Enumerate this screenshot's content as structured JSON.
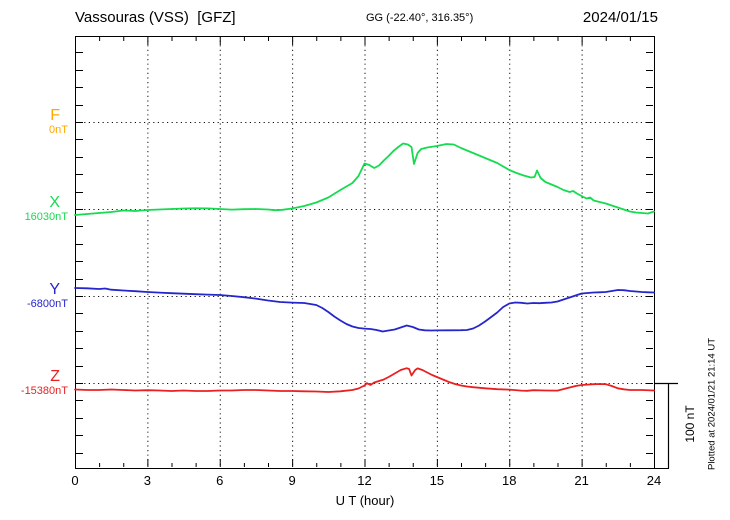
{
  "header": {
    "station_title": "Vassouras (VSS)  [GFZ]",
    "coordinates": "GG (-22.40°, 316.35°)",
    "date": "2024/01/15"
  },
  "axis": {
    "xlabel": "U T (hour)",
    "x_tick_labels": [
      "0",
      "3",
      "6",
      "9",
      "12",
      "15",
      "18",
      "21",
      "24"
    ],
    "scale_bar_label": "100 nT",
    "plotted_note": "Plotted at 2024/01/21 21:14 UT"
  },
  "chart_data": {
    "type": "line",
    "title": "Vassouras (VSS) [GFZ]",
    "subtitle": "GG (-22.40°, 316.35°)",
    "date": "2024/01/15",
    "xlabel": "U T (hour)",
    "x_range": [
      0,
      24
    ],
    "x_ticks": [
      0,
      3,
      6,
      9,
      12,
      15,
      18,
      21,
      24
    ],
    "grid": "dotted vertical every 3 h, dotted horizontal at each component baseline",
    "y_scale_bar": "100 nT",
    "note": "points are [hour UT, offset in nT from the component baseline value]",
    "series": [
      {
        "component": "F",
        "base_value_label": "0nT",
        "color": "#FFA800",
        "points_nt_offset": []
      },
      {
        "component": "X",
        "base_value_label": "16030nT",
        "color": "#16DB50",
        "points_nt_offset": [
          [
            0,
            -7.1
          ],
          [
            0.5,
            -5.9
          ],
          [
            1,
            -4.7
          ],
          [
            1.5,
            -3.5
          ],
          [
            2,
            -1.8
          ],
          [
            2.5,
            -2.4
          ],
          [
            3,
            -1.2
          ],
          [
            3.5,
            -0.6
          ],
          [
            4,
            0
          ],
          [
            4.5,
            0.6
          ],
          [
            5,
            0.8
          ],
          [
            5.5,
            0.7
          ],
          [
            6,
            0
          ],
          [
            6.5,
            -0.7
          ],
          [
            7,
            -0.2
          ],
          [
            7.5,
            0
          ],
          [
            8,
            -0.6
          ],
          [
            8.3,
            -1.4
          ],
          [
            8.6,
            -0.9
          ],
          [
            9,
            0.6
          ],
          [
            9.5,
            3.5
          ],
          [
            10,
            7.6
          ],
          [
            10.5,
            13.5
          ],
          [
            11,
            22.4
          ],
          [
            11.5,
            30.6
          ],
          [
            11.75,
            38.8
          ],
          [
            12,
            53.5
          ],
          [
            12.2,
            51.8
          ],
          [
            12.4,
            48.2
          ],
          [
            12.6,
            51.2
          ],
          [
            12.8,
            57.1
          ],
          [
            13,
            62.4
          ],
          [
            13.2,
            68.2
          ],
          [
            13.4,
            72.9
          ],
          [
            13.6,
            77.1
          ],
          [
            13.8,
            75.9
          ],
          [
            13.95,
            72.9
          ],
          [
            14.05,
            52.9
          ],
          [
            14.2,
            65.9
          ],
          [
            14.35,
            70.6
          ],
          [
            14.6,
            72.4
          ],
          [
            15,
            74.1
          ],
          [
            15.4,
            76.5
          ],
          [
            15.7,
            75.9
          ],
          [
            16,
            71.8
          ],
          [
            16.5,
            65.9
          ],
          [
            17,
            60
          ],
          [
            17.5,
            54.1
          ],
          [
            18,
            45.9
          ],
          [
            18.3,
            42.4
          ],
          [
            18.6,
            39.4
          ],
          [
            18.9,
            37.1
          ],
          [
            19.05,
            37.6
          ],
          [
            19.15,
            45.3
          ],
          [
            19.3,
            36.5
          ],
          [
            19.5,
            31.8
          ],
          [
            19.75,
            28.8
          ],
          [
            20,
            25.9
          ],
          [
            20.25,
            22.4
          ],
          [
            20.5,
            20
          ],
          [
            20.65,
            21.2
          ],
          [
            20.8,
            18.2
          ],
          [
            21,
            15.3
          ],
          [
            21.2,
            12.4
          ],
          [
            21.35,
            13.5
          ],
          [
            21.5,
            10
          ],
          [
            21.75,
            8.2
          ],
          [
            22,
            6.5
          ],
          [
            22.25,
            4.1
          ],
          [
            22.5,
            1.8
          ],
          [
            22.75,
            -0.6
          ],
          [
            23,
            -2.9
          ],
          [
            23.25,
            -4.1
          ],
          [
            23.5,
            -4.7
          ],
          [
            23.75,
            -5.3
          ],
          [
            24,
            -2.9
          ]
        ]
      },
      {
        "component": "Y",
        "base_value_label": "-6800nT",
        "color": "#2626CC",
        "points_nt_offset": [
          [
            0,
            9.4
          ],
          [
            0.5,
            9.1
          ],
          [
            1,
            8.2
          ],
          [
            1.25,
            8.8
          ],
          [
            1.5,
            7.4
          ],
          [
            2,
            6.5
          ],
          [
            2.5,
            5.6
          ],
          [
            3,
            4.7
          ],
          [
            3.5,
            4
          ],
          [
            4,
            3.3
          ],
          [
            4.5,
            2.7
          ],
          [
            5,
            2.1
          ],
          [
            5.5,
            1.6
          ],
          [
            6,
            1.2
          ],
          [
            6.5,
            0
          ],
          [
            7,
            -1.4
          ],
          [
            7.5,
            -3.1
          ],
          [
            8,
            -5.3
          ],
          [
            8.5,
            -7.1
          ],
          [
            9,
            -7.8
          ],
          [
            9.5,
            -8.2
          ],
          [
            10,
            -10.6
          ],
          [
            10.25,
            -14.1
          ],
          [
            10.5,
            -18.8
          ],
          [
            10.75,
            -24.1
          ],
          [
            11,
            -28.8
          ],
          [
            11.25,
            -32.9
          ],
          [
            11.5,
            -35.9
          ],
          [
            11.75,
            -37.6
          ],
          [
            12,
            -38.4
          ],
          [
            12.25,
            -38.8
          ],
          [
            12.5,
            -40
          ],
          [
            12.75,
            -41.8
          ],
          [
            13,
            -40.6
          ],
          [
            13.25,
            -39.4
          ],
          [
            13.5,
            -37.1
          ],
          [
            13.75,
            -34.7
          ],
          [
            14,
            -36.5
          ],
          [
            14.25,
            -39.4
          ],
          [
            14.5,
            -40.4
          ],
          [
            14.75,
            -40.6
          ],
          [
            15,
            -40.5
          ],
          [
            15.5,
            -40.4
          ],
          [
            16,
            -40.2
          ],
          [
            16.25,
            -40
          ],
          [
            16.5,
            -38.2
          ],
          [
            16.75,
            -34.7
          ],
          [
            17,
            -30
          ],
          [
            17.25,
            -24.7
          ],
          [
            17.5,
            -19.4
          ],
          [
            17.75,
            -12.9
          ],
          [
            18,
            -8.8
          ],
          [
            18.25,
            -7.6
          ],
          [
            18.5,
            -8
          ],
          [
            18.75,
            -8.8
          ],
          [
            19,
            -8.2
          ],
          [
            19.25,
            -8.5
          ],
          [
            19.5,
            -8
          ],
          [
            19.75,
            -7.6
          ],
          [
            20,
            -6.5
          ],
          [
            20.25,
            -4.1
          ],
          [
            20.5,
            -1.8
          ],
          [
            20.75,
            0.6
          ],
          [
            21,
            2.9
          ],
          [
            21.25,
            3.5
          ],
          [
            21.5,
            4.1
          ],
          [
            21.75,
            4.4
          ],
          [
            22,
            4.7
          ],
          [
            22.25,
            5.9
          ],
          [
            22.5,
            7.1
          ],
          [
            22.75,
            6.8
          ],
          [
            23,
            5.9
          ],
          [
            23.25,
            5.3
          ],
          [
            23.5,
            4.7
          ],
          [
            23.75,
            4.3
          ],
          [
            24,
            4.1
          ]
        ]
      },
      {
        "component": "Z",
        "base_value_label": "-15380nT",
        "color": "#EA2020",
        "points_nt_offset": [
          [
            0,
            -7.6
          ],
          [
            0.5,
            -8.2
          ],
          [
            1,
            -8.2
          ],
          [
            1.5,
            -7.6
          ],
          [
            2,
            -8.2
          ],
          [
            2.5,
            -8.8
          ],
          [
            3,
            -8.5
          ],
          [
            3.5,
            -8.8
          ],
          [
            4,
            -9.4
          ],
          [
            4.5,
            -8.8
          ],
          [
            5,
            -9.4
          ],
          [
            5.5,
            -9.4
          ],
          [
            6,
            -8.8
          ],
          [
            6.5,
            -8.8
          ],
          [
            7,
            -8.2
          ],
          [
            7.5,
            -8.2
          ],
          [
            8,
            -8.8
          ],
          [
            8.5,
            -9.4
          ],
          [
            9,
            -9.4
          ],
          [
            9.5,
            -9.8
          ],
          [
            10,
            -10
          ],
          [
            10.5,
            -10.6
          ],
          [
            11,
            -9.8
          ],
          [
            11.5,
            -8.2
          ],
          [
            11.75,
            -6.5
          ],
          [
            12,
            -2.9
          ],
          [
            12.1,
            -0.2
          ],
          [
            12.25,
            -2.4
          ],
          [
            12.4,
            0.6
          ],
          [
            12.6,
            2.4
          ],
          [
            12.8,
            4.1
          ],
          [
            13,
            7.1
          ],
          [
            13.25,
            11.2
          ],
          [
            13.5,
            15.3
          ],
          [
            13.75,
            17.4
          ],
          [
            13.85,
            16.5
          ],
          [
            13.95,
            8.8
          ],
          [
            14.1,
            15.3
          ],
          [
            14.2,
            17.2
          ],
          [
            14.4,
            15.3
          ],
          [
            14.6,
            12.4
          ],
          [
            14.8,
            9.4
          ],
          [
            15,
            7.1
          ],
          [
            15.25,
            4.1
          ],
          [
            15.5,
            1.2
          ],
          [
            15.75,
            -1.2
          ],
          [
            16,
            -2.9
          ],
          [
            16.25,
            -4.1
          ],
          [
            16.5,
            -4.9
          ],
          [
            17,
            -6.2
          ],
          [
            17.5,
            -7.3
          ],
          [
            18,
            -7.8
          ],
          [
            18.5,
            -8.9
          ],
          [
            18.75,
            -9.2
          ],
          [
            19,
            -8.5
          ],
          [
            19.5,
            -8.8
          ],
          [
            20,
            -8.9
          ],
          [
            20.5,
            -5.3
          ],
          [
            20.75,
            -3.5
          ],
          [
            21,
            -2.4
          ],
          [
            21.25,
            -1.9
          ],
          [
            21.5,
            -1.4
          ],
          [
            21.75,
            -1.2
          ],
          [
            22,
            -1.4
          ],
          [
            22.25,
            -3.5
          ],
          [
            22.5,
            -6.2
          ],
          [
            22.75,
            -7.4
          ],
          [
            23,
            -8.2
          ],
          [
            23.5,
            -8.2
          ],
          [
            24,
            -8.8
          ]
        ]
      }
    ]
  }
}
